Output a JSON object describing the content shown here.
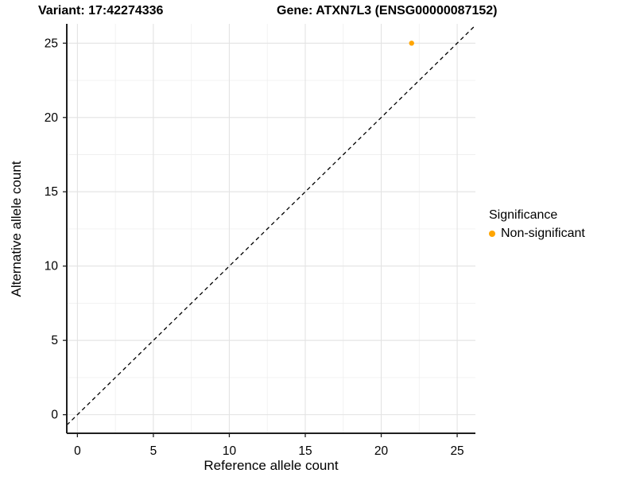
{
  "header": {
    "variant_title": "Variant: 17:42274336",
    "gene_title": "Gene: ATXN7L3 (ENSG00000087152)"
  },
  "legend": {
    "title": "Significance",
    "items": [
      {
        "label": "Non-significant",
        "color": "#FFA500"
      }
    ]
  },
  "colors": {
    "background": "#ffffff",
    "grid_major": "#e3e3e3",
    "grid_minor": "#f0f0f0",
    "axis_line": "#1f1f1f",
    "tick_text": "#000000",
    "reference_line": "#000000",
    "point": "#FFA500"
  },
  "chart_data": {
    "type": "scatter",
    "title": "Variant: 17:42274336    Gene: ATXN7L3 (ENSG00000087152)",
    "xlabel": "Reference allele count",
    "ylabel": "Alternative allele count",
    "xlim": [
      -0.7,
      26.2
    ],
    "ylim": [
      -1.25,
      26.3
    ],
    "xticks": [
      0,
      5,
      10,
      15,
      20,
      25
    ],
    "yticks": [
      0,
      5,
      10,
      15,
      20,
      25
    ],
    "minor_grid_step": 2.5,
    "grid": "major+minor",
    "legend_position": "right",
    "series": [
      {
        "name": "Non-significant",
        "color": "#FFA500",
        "marker": "circle",
        "marker_radius": 3.2,
        "points": [
          [
            22,
            25
          ]
        ]
      }
    ],
    "reference_line": {
      "slope": 1,
      "intercept": 0,
      "style": "dashed",
      "color": "#000000"
    }
  }
}
